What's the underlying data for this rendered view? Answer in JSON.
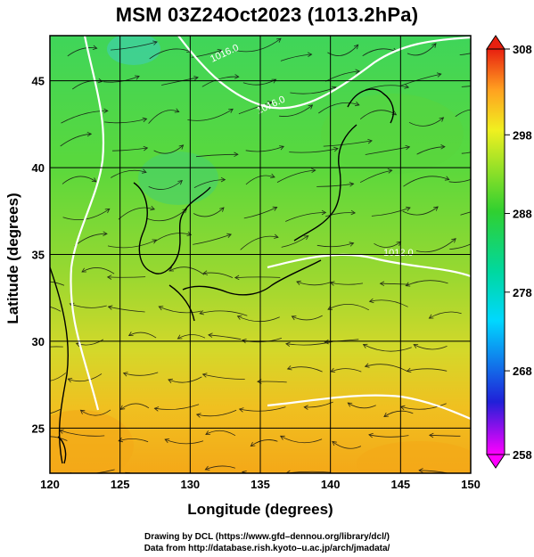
{
  "title": "MSM 03Z24Oct2023 (1013.2hPa)",
  "map": {
    "xlabel": "Longitude (degrees)",
    "ylabel": "Latitude  (degrees)",
    "lon_range": [
      120,
      150
    ],
    "lat_range": [
      22.4,
      47.6
    ],
    "lon_ticks": [
      "120",
      "125",
      "130",
      "135",
      "140",
      "145",
      "150"
    ],
    "lat_ticks": [
      "25",
      "30",
      "35",
      "40",
      "45"
    ],
    "contour_labels": [
      "1016.0",
      "1016.0",
      "1012.0"
    ]
  },
  "colorbar": {
    "ticks": [
      "308",
      "298",
      "288",
      "278",
      "268",
      "258"
    ],
    "colors": [
      "#ff00ff",
      "#3b3bff",
      "#00c8ff",
      "#00d88a",
      "#3ad23a",
      "#b4e43c",
      "#ffe040",
      "#ffa020",
      "#ff5020",
      "#e82010"
    ]
  },
  "credits": {
    "line1": "Drawing by DCL (https://www.gfd–dennou.org/library/dcl/)",
    "line2": "Data from http://database.rish.kyoto–u.ac.jp/arch/jmadata/"
  }
}
